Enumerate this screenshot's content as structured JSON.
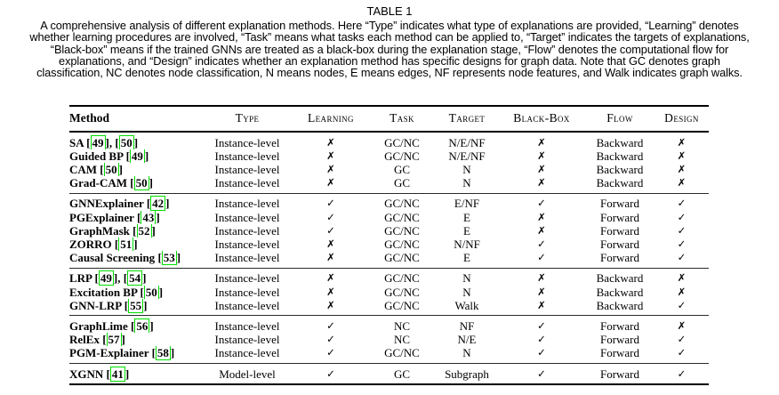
{
  "page_title": "TABLE 1",
  "caption_lines": [
    "A comprehensive analysis of different explanation methods. Here “Type” indicates what type of explanations are provided, “Learning” denotes",
    "whether learning procedures are involved, “Task” means what tasks each method can be applied to, “Target” indicates the targets of explanations,",
    "“Black-box” means if the trained GNNs are treated as a black-box during the explanation stage, “Flow” denotes the computational flow for",
    "explanations, and “Design” indicates whether an explanation method has specific designs for graph data. Note that GC denotes graph",
    "classification, NC denotes node classification, N means nodes, E means edges, NF represents node features, and Walk indicates graph walks."
  ],
  "colors": {
    "citation_box": "#00dd00",
    "text": "#000000",
    "background": "#ffffff"
  },
  "table": {
    "headers": [
      "Method",
      "Type",
      "Learning",
      "Task",
      "Target",
      "Black-Box",
      "Flow",
      "Design"
    ],
    "citation_prefix": "[",
    "citation_suffix": "]",
    "citation_separator": ", ",
    "groups": [
      {
        "rows": [
          {
            "method": "SA",
            "refs": [
              "49",
              "50"
            ],
            "type": "Instance-level",
            "learning": "✗",
            "task": "GC/NC",
            "target": "N/E/NF",
            "blackbox": "✗",
            "flow": "Backward",
            "design": "✗"
          },
          {
            "method": "Guided BP",
            "refs": [
              "49"
            ],
            "type": "Instance-level",
            "learning": "✗",
            "task": "GC/NC",
            "target": "N/E/NF",
            "blackbox": "✗",
            "flow": "Backward",
            "design": "✗"
          },
          {
            "method": "CAM",
            "refs": [
              "50"
            ],
            "type": "Instance-level",
            "learning": "✗",
            "task": "GC",
            "target": "N",
            "blackbox": "✗",
            "flow": "Backward",
            "design": "✗"
          },
          {
            "method": "Grad-CAM",
            "refs": [
              "50"
            ],
            "type": "Instance-level",
            "learning": "✗",
            "task": "GC",
            "target": "N",
            "blackbox": "✗",
            "flow": "Backward",
            "design": "✗"
          }
        ]
      },
      {
        "rows": [
          {
            "method": "GNNExplainer",
            "refs": [
              "42"
            ],
            "type": "Instance-level",
            "learning": "✓",
            "task": "GC/NC",
            "target": "E/NF",
            "blackbox": "✓",
            "flow": "Forward",
            "design": "✓"
          },
          {
            "method": "PGExplainer",
            "refs": [
              "43"
            ],
            "type": "Instance-level",
            "learning": "✓",
            "task": "GC/NC",
            "target": "E",
            "blackbox": "✗",
            "flow": "Forward",
            "design": "✓"
          },
          {
            "method": "GraphMask",
            "refs": [
              "52"
            ],
            "type": "Instance-level",
            "learning": "✓",
            "task": "GC/NC",
            "target": "E",
            "blackbox": "✗",
            "flow": "Forward",
            "design": "✓"
          },
          {
            "method": "ZORRO",
            "refs": [
              "51"
            ],
            "type": "Instance-level",
            "learning": "✗",
            "task": "GC/NC",
            "target": "N/NF",
            "blackbox": "✓",
            "flow": "Forward",
            "design": "✓"
          },
          {
            "method": "Causal Screening",
            "refs": [
              "53"
            ],
            "type": "Instance-level",
            "learning": "✗",
            "task": "GC/NC",
            "target": "E",
            "blackbox": "✓",
            "flow": "Forward",
            "design": "✓"
          }
        ]
      },
      {
        "rows": [
          {
            "method": "LRP",
            "refs": [
              "49",
              "54"
            ],
            "type": "Instance-level",
            "learning": "✗",
            "task": "GC/NC",
            "target": "N",
            "blackbox": "✗",
            "flow": "Backward",
            "design": "✗"
          },
          {
            "method": "Excitation BP",
            "refs": [
              "50"
            ],
            "type": "Instance-level",
            "learning": "✗",
            "task": "GC/NC",
            "target": "N",
            "blackbox": "✗",
            "flow": "Backward",
            "design": "✗"
          },
          {
            "method": "GNN-LRP",
            "refs": [
              "55"
            ],
            "type": "Instance-level",
            "learning": "✗",
            "task": "GC/NC",
            "target": "Walk",
            "blackbox": "✗",
            "flow": "Backward",
            "design": "✓"
          }
        ]
      },
      {
        "rows": [
          {
            "method": "GraphLime",
            "refs": [
              "56"
            ],
            "type": "Instance-level",
            "learning": "✓",
            "task": "NC",
            "target": "NF",
            "blackbox": "✓",
            "flow": "Forward",
            "design": "✗"
          },
          {
            "method": "RelEx",
            "refs": [
              "57"
            ],
            "type": "Instance-level",
            "learning": "✓",
            "task": "NC",
            "target": "N/E",
            "blackbox": "✓",
            "flow": "Forward",
            "design": "✓"
          },
          {
            "method": "PGM-Explainer",
            "refs": [
              "58"
            ],
            "type": "Instance-level",
            "learning": "✓",
            "task": "GC/NC",
            "target": "N",
            "blackbox": "✓",
            "flow": "Forward",
            "design": "✓"
          }
        ]
      },
      {
        "rows": [
          {
            "method": "XGNN",
            "refs": [
              "41"
            ],
            "type": "Model-level",
            "learning": "✓",
            "task": "GC",
            "target": "Subgraph",
            "blackbox": "✓",
            "flow": "Forward",
            "design": "✓"
          }
        ]
      }
    ]
  }
}
